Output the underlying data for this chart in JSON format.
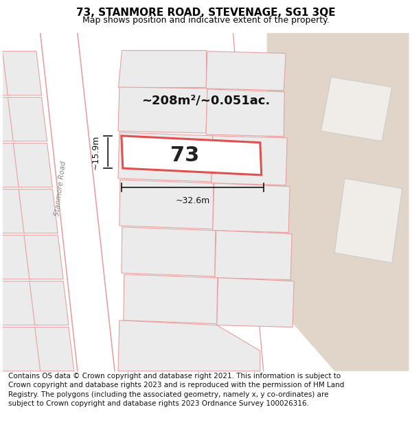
{
  "title": "73, STANMORE ROAD, STEVENAGE, SG1 3QE",
  "subtitle": "Map shows position and indicative extent of the property.",
  "footer": "Contains OS data © Crown copyright and database right 2021. This information is subject to Crown copyright and database rights 2023 and is reproduced with the permission of HM Land Registry. The polygons (including the associated geometry, namely x, y co-ordinates) are subject to Crown copyright and database rights 2023 Ordnance Survey 100026316.",
  "area_label": "~208m²/~0.051ac.",
  "number_label": "73",
  "dim_width": "~32.6m",
  "dim_height": "~15.9m",
  "bg_color": "#f5f3f0",
  "tan_color": "#e0d5c8",
  "plot_outline_color": "#e05050",
  "road_line_color": "#e8a0a0",
  "neighbor_fill": "#ebebeb",
  "neighbor_outline": "#e8a0a0",
  "white_fill": "#ffffff",
  "title_fontsize": 11,
  "subtitle_fontsize": 9,
  "footer_fontsize": 7.5,
  "road_name": "Stanmore Road"
}
